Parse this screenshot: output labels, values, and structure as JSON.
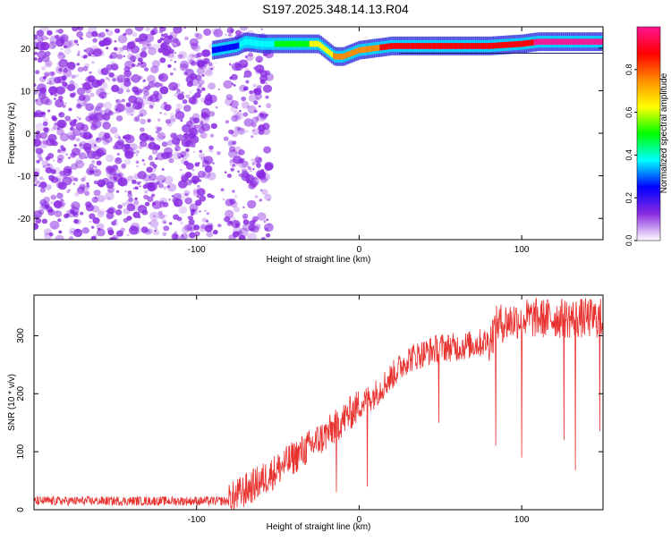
{
  "title": "S197.2025.348.14.13.R04",
  "chart_data": [
    {
      "type": "heatmap",
      "name": "spectrogram",
      "xlabel": "Height of straight line (km)",
      "ylabel": "Frequency (Hz)",
      "xlim": [
        -200,
        150
      ],
      "ylim": [
        -25,
        25
      ],
      "x_ticks": [
        -100,
        0,
        100
      ],
      "y_ticks": [
        -20,
        -10,
        0,
        10,
        20
      ],
      "colorbar": {
        "label": "Normalized spectral amplitude",
        "range": [
          0,
          1
        ],
        "ticks": [
          0.0,
          0.2,
          0.4,
          0.6,
          0.8
        ],
        "tick_labels": [
          "0.0",
          "0.2",
          "0.4",
          "0.6",
          "0.8"
        ],
        "colormap": [
          "#ffffff",
          "#8a2be2",
          "#0000ff",
          "#00ffff",
          "#00ff00",
          "#ffff00",
          "#ff8c00",
          "#ff0000",
          "#ff1493"
        ]
      },
      "noise_region_x": [
        -200,
        -70
      ],
      "noise_color": "#8a2be2",
      "signal_ridge": {
        "description": "dominant frequency band",
        "x": [
          -90,
          -75,
          -70,
          -60,
          -40,
          -25,
          -20,
          -15,
          -10,
          0,
          10,
          20,
          30,
          60,
          80,
          100,
          110,
          150
        ],
        "y": [
          19.5,
          20.5,
          21.5,
          21,
          21,
          21,
          19.5,
          18,
          18,
          19.5,
          20,
          20.5,
          20.5,
          20.5,
          20.5,
          21,
          21.5,
          21.5
        ],
        "amplitude": [
          0.2,
          0.3,
          0.35,
          0.4,
          0.5,
          0.6,
          0.6,
          0.7,
          0.75,
          0.75,
          0.8,
          0.85,
          0.9,
          0.85,
          0.9,
          0.9,
          0.95,
          0.95
        ]
      }
    },
    {
      "type": "line",
      "name": "snr",
      "xlabel": "Height of straight line (km)",
      "ylabel": "SNR (10 * v/v)",
      "xlim": [
        -200,
        150
      ],
      "ylim": [
        0,
        370
      ],
      "x_ticks": [
        -100,
        0,
        100
      ],
      "y_ticks": [
        0,
        100,
        200,
        300
      ],
      "color": "#e8322f",
      "trend": {
        "x": [
          -200,
          -80,
          -75,
          -60,
          -40,
          -20,
          0,
          10,
          20,
          30,
          40,
          50,
          60,
          70,
          80,
          85,
          100,
          120,
          150
        ],
        "y": [
          15,
          15,
          25,
          50,
          90,
          130,
          180,
          200,
          230,
          260,
          270,
          280,
          280,
          285,
          290,
          320,
          330,
          330,
          330
        ]
      },
      "dips": [
        {
          "x": -14,
          "y": 30
        },
        {
          "x": 5,
          "y": 40
        },
        {
          "x": 49,
          "y": 150
        },
        {
          "x": 84,
          "y": 110
        },
        {
          "x": 100,
          "y": 90
        },
        {
          "x": 126,
          "y": 120
        },
        {
          "x": 133,
          "y": 68
        },
        {
          "x": 148,
          "y": 135
        }
      ]
    }
  ]
}
